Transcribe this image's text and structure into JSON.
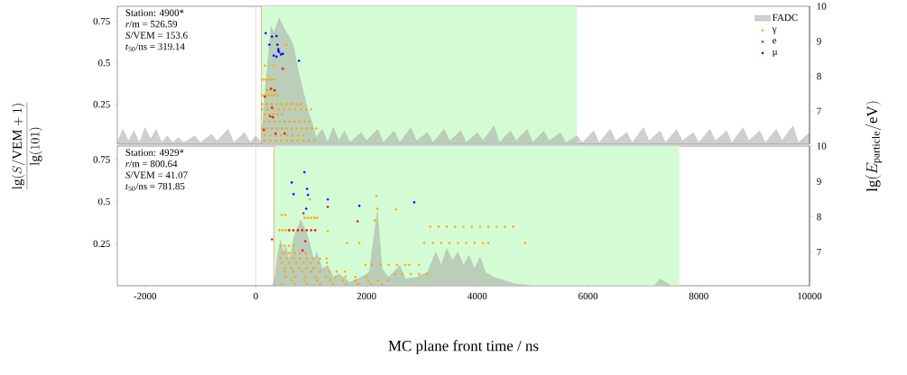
{
  "chart_data": [
    {
      "type": "area",
      "ylabel": "\\frac{\\lg(S/\\mathrm{VEM}+1)}{\\lg(101)}",
      "y2label": "\\lg(E_{\\mathrm{particle}}/\\mathrm{eV})",
      "annotations": [
        "Station: 4900*",
        "*r*/m = 526.59",
        "*S*/VEM = 153.6",
        "*t*$_{50}$/ns = 319.14"
      ],
      "xlim": [
        -2500,
        10000
      ],
      "ylim": [
        0.01,
        0.84
      ],
      "yticks": [
        0.25,
        0.5,
        0.75
      ],
      "y2lim": [
        6.05,
        10
      ],
      "y2ticks": [
        7,
        8,
        9,
        10
      ],
      "tick_labels": "y",
      "legend": "top right",
      "bands": [
        {
          "axis": "x",
          "from": 100,
          "to": 5800,
          "color": "#d4fcd4"
        }
      ],
      "ref_lines": [
        {
          "axis": "x",
          "value": 0,
          "color": "#d0d0d0"
        },
        {
          "axis": "x",
          "value": 100,
          "color": "#e8a080"
        }
      ],
      "series": [
        {
          "name": "FADC",
          "color": "#a0a0a0",
          "x": [
            -2500,
            -2400,
            -2300,
            -2200,
            -2100,
            -2000,
            -1900,
            -1800,
            -1700,
            -1600,
            -1500,
            -1400,
            -1300,
            -1100,
            -1000,
            -800,
            -700,
            -500,
            -400,
            -200,
            -100,
            0,
            100,
            163,
            276,
            325,
            423,
            520,
            600,
            683,
            764,
            878,
            950,
            1008,
            1089,
            1200,
            1300,
            1400,
            1500,
            1600,
            1700,
            1900,
            2000,
            2200,
            2300,
            2500,
            2600,
            2800,
            2900,
            3100,
            3200,
            3400,
            3500,
            3700,
            3800,
            4000,
            4100,
            4300,
            4400,
            4600,
            4700,
            4900,
            5000,
            5200,
            5300,
            5500,
            5600,
            5800,
            5900,
            6100,
            6200,
            6400,
            6500,
            6700,
            6800,
            7000,
            7100,
            7300,
            7400,
            7600,
            7700,
            7900,
            8000,
            8200,
            8300,
            8500,
            8600,
            8800,
            8900,
            9100,
            9200,
            9400,
            9500,
            9700,
            9800,
            10000
          ],
          "values": [
            0.02,
            0.1,
            0.03,
            0.09,
            0.02,
            0.11,
            0.04,
            0.1,
            0.02,
            0.06,
            0.02,
            0.05,
            0.02,
            0.06,
            0.02,
            0.07,
            0.03,
            0.1,
            0.02,
            0.08,
            0.02,
            0.06,
            0.02,
            0.3,
            0.72,
            0.68,
            0.77,
            0.7,
            0.66,
            0.6,
            0.45,
            0.3,
            0.2,
            0.15,
            0.05,
            0.1,
            0.02,
            0.11,
            0.03,
            0.09,
            0.02,
            0.08,
            0.03,
            0.1,
            0.02,
            0.09,
            0.02,
            0.11,
            0.03,
            0.08,
            0.02,
            0.1,
            0.03,
            0.09,
            0.02,
            0.08,
            0.03,
            0.12,
            0.02,
            0.09,
            0.03,
            0.1,
            0.02,
            0.09,
            0.03,
            0.08,
            0.02,
            0.06,
            0.02,
            0.09,
            0.02,
            0.1,
            0.03,
            0.08,
            0.02,
            0.11,
            0.03,
            0.09,
            0.02,
            0.1,
            0.03,
            0.08,
            0.02,
            0.1,
            0.03,
            0.09,
            0.02,
            0.11,
            0.03,
            0.09,
            0.02,
            0.1,
            0.03,
            0.12,
            0.02,
            0.08
          ]
        },
        {
          "name": "γ",
          "type": "scatter",
          "axis": "y2",
          "color": "#ffa500",
          "x": [
            553,
            163,
            325,
            130,
            180,
            230,
            280,
            330,
            200,
            260,
            330,
            130,
            180,
            230,
            290,
            340,
            390,
            114,
            200,
            290,
            380,
            470,
            560,
            650,
            740,
            813,
            114,
            210,
            310,
            410,
            510,
            610,
            710,
            810,
            910,
            1000,
            160,
            240,
            320,
            400,
            480,
            160,
            250,
            340,
            430,
            520,
            610,
            700,
            790,
            880,
            970,
            114,
            200,
            290,
            380,
            470,
            560,
            650,
            740,
            830,
            920,
            1010,
            1090,
            160,
            260,
            360,
            460,
            560,
            660,
            760,
            860,
            160,
            260,
            360,
            460,
            560,
            660,
            760,
            860,
            960,
            1060
          ],
          "values": [
            8.9,
            8.3,
            8.3,
            7.9,
            7.9,
            7.9,
            7.9,
            7.9,
            7.6,
            7.6,
            7.6,
            7.45,
            7.45,
            7.45,
            7.45,
            7.45,
            7.45,
            7.2,
            7.2,
            7.2,
            7.2,
            7.2,
            7.2,
            7.2,
            7.2,
            7.2,
            7.05,
            7.05,
            7.05,
            7.05,
            7.05,
            7.05,
            7.05,
            7.05,
            7.05,
            7.05,
            6.9,
            6.9,
            6.9,
            6.9,
            6.9,
            6.7,
            6.7,
            6.7,
            6.7,
            6.7,
            6.7,
            6.7,
            6.7,
            6.7,
            6.7,
            6.5,
            6.5,
            6.5,
            6.5,
            6.5,
            6.5,
            6.5,
            6.5,
            6.5,
            6.5,
            6.5,
            6.5,
            6.3,
            6.3,
            6.3,
            6.3,
            6.3,
            6.3,
            6.3,
            6.3,
            6.15,
            6.15,
            6.15,
            6.15,
            6.15,
            6.15,
            6.15,
            6.15,
            6.15,
            6.15
          ]
        },
        {
          "name": "e",
          "type": "scatter",
          "axis": "y2",
          "color": "#ff0000",
          "x": [
            488,
            276,
            341,
            163,
            293,
            260,
            309,
            358,
            520,
            146
          ],
          "values": [
            8.21,
            7.64,
            7.59,
            7.41,
            7.1,
            6.85,
            6.82,
            6.36,
            6.36,
            6.46
          ]
        },
        {
          "name": "μ",
          "type": "scatter",
          "axis": "y2",
          "color": "#0000ff",
          "x": [
            179,
            293,
            374,
            244,
            390,
            407,
            407,
            423,
            325,
            374,
            455,
            488,
            780
          ],
          "values": [
            9.23,
            9.13,
            9.15,
            8.9,
            8.9,
            8.77,
            8.72,
            8.69,
            8.59,
            8.56,
            8.62,
            8.64,
            8.44
          ]
        }
      ]
    },
    {
      "type": "area",
      "xlabel": "MC plane front time / ns",
      "annotations": [
        "Station: 4929*",
        "*r*/m = 800.64",
        "*S*/VEM = 41.07",
        "*t*$_{50}$/ns = 781.85"
      ],
      "xlim": [
        -2500,
        10000
      ],
      "xticks": [
        -2000,
        0,
        2000,
        4000,
        6000,
        8000,
        10000
      ],
      "ylim": [
        0.0,
        0.83
      ],
      "yticks": [
        0.25,
        0.5,
        0.75
      ],
      "y2lim": [
        6.05,
        10
      ],
      "y2ticks": [
        7,
        8,
        9,
        10
      ],
      "bands": [
        {
          "axis": "x",
          "from": 330,
          "to": 7650,
          "color": "#d4fcd4"
        }
      ],
      "ref_lines": [
        {
          "axis": "x",
          "value": 0,
          "color": "#d0d0d0"
        },
        {
          "axis": "x",
          "value": 330,
          "color": "#e8a080"
        }
      ],
      "series": [
        {
          "color": "#a0a0a0",
          "x": [
            -2500,
            300,
            350,
            400,
            450,
            500,
            550,
            600,
            650,
            700,
            813,
            900,
            950,
            1050,
            1100,
            1200,
            1300,
            1400,
            1500,
            1700,
            1900,
            2050,
            2195,
            2280,
            2400,
            2600,
            2700,
            2900,
            3100,
            3250,
            3350,
            3450,
            3550,
            3650,
            3750,
            3850,
            3950,
            4050,
            4150,
            4300,
            4500,
            4700,
            5000,
            7200,
            7300,
            7400,
            7500,
            10000
          ],
          "values": [
            0,
            0,
            0.05,
            0.2,
            0.27,
            0.2,
            0.23,
            0.15,
            0.22,
            0.3,
            0.39,
            0.33,
            0.28,
            0.15,
            0.2,
            0.1,
            0.12,
            0.05,
            0.07,
            0.02,
            0.05,
            0.08,
            0.44,
            0.1,
            0.05,
            0.12,
            0.04,
            0.05,
            0.08,
            0.2,
            0.12,
            0.22,
            0.15,
            0.2,
            0.12,
            0.18,
            0.1,
            0.17,
            0.08,
            0.05,
            0.03,
            0.01,
            0,
            0,
            0.04,
            0.02,
            0,
            0
          ]
        },
        {
          "type": "scatter",
          "axis": "y2",
          "color": "#ffa500",
          "x": [
            976,
            2179,
            2195,
            2537,
            2146,
            1301,
            1870,
            1650,
            472,
            537,
            878,
            940,
            1000,
            1060,
            1106,
            423,
            480,
            540,
            3150,
            3300,
            3450,
            3600,
            3750,
            3900,
            4050,
            4200,
            4350,
            4500,
            4650,
            3040,
            3200,
            3350,
            3500,
            3650,
            3800,
            3950,
            4100,
            4200,
            4860,
            450,
            520,
            600,
            680,
            500,
            600,
            700,
            800,
            900,
            440,
            560,
            680,
            800,
            920,
            1040,
            1160,
            1280,
            472,
            600,
            730,
            860,
            990,
            1130,
            1285,
            1980,
            2100,
            2250,
            2400,
            2550,
            2700,
            2770,
            2950,
            520,
            650,
            780,
            910,
            1040,
            520,
            680,
            840,
            1000,
            1160,
            1320,
            1460,
            1610,
            2520,
            2650,
            2800,
            2950,
            3100,
            540,
            720,
            900,
            1080,
            1260,
            1440,
            1620,
            1800,
            2000,
            650,
            880,
            1110,
            1340,
            1570,
            1800,
            2030,
            2200,
            2390,
            472,
            700,
            930,
            1160,
            1390,
            1620,
            1850,
            2080,
            2280
          ],
          "values": [
            8.49,
            8.59,
            8.23,
            8.21,
            7.9,
            7.59,
            7.26,
            7.26,
            8.05,
            8.05,
            7.97,
            7.97,
            7.97,
            7.97,
            7.97,
            7.62,
            7.62,
            7.62,
            7.72,
            7.72,
            7.72,
            7.72,
            7.72,
            7.72,
            7.72,
            7.72,
            7.72,
            7.72,
            7.72,
            7.26,
            7.26,
            7.26,
            7.26,
            7.26,
            7.26,
            7.26,
            7.26,
            7.26,
            7.26,
            7.18,
            7.18,
            7.18,
            7.18,
            6.97,
            6.97,
            6.97,
            6.97,
            6.97,
            6.82,
            6.82,
            6.82,
            6.82,
            6.82,
            6.82,
            6.82,
            6.82,
            6.7,
            6.7,
            6.7,
            6.7,
            6.7,
            6.7,
            6.7,
            6.64,
            6.64,
            6.64,
            6.64,
            6.64,
            6.64,
            6.64,
            6.64,
            6.55,
            6.55,
            6.55,
            6.55,
            6.55,
            6.45,
            6.45,
            6.45,
            6.45,
            6.45,
            6.45,
            6.45,
            6.45,
            6.38,
            6.38,
            6.38,
            6.38,
            6.38,
            6.3,
            6.3,
            6.3,
            6.3,
            6.3,
            6.3,
            6.3,
            6.3,
            6.3,
            6.2,
            6.2,
            6.2,
            6.2,
            6.2,
            6.2,
            6.2,
            6.2,
            6.2,
            6.1,
            6.1,
            6.1,
            6.1,
            6.1,
            6.1,
            6.1,
            6.1,
            6.1
          ]
        },
        {
          "type": "scatter",
          "axis": "y2",
          "color": "#ff0000",
          "x": [
            862,
            1301,
            1837,
            293,
            894,
            846,
            602,
            680,
            760,
            840,
            920,
            1000,
            1073
          ],
          "values": [
            8.1,
            8.28,
            7.87,
            7.36,
            7.31,
            7.05,
            7.62,
            7.62,
            7.62,
            7.62,
            7.62,
            7.62,
            7.62
          ]
        },
        {
          "type": "scatter",
          "axis": "y2",
          "color": "#0000ff",
          "x": [
            878,
            650,
            927,
            683,
            943,
            911,
            1301,
            1870,
            2862
          ],
          "values": [
            9.26,
            8.97,
            8.79,
            8.64,
            8.62,
            8.23,
            8.49,
            8.31,
            8.41
          ]
        }
      ]
    }
  ]
}
